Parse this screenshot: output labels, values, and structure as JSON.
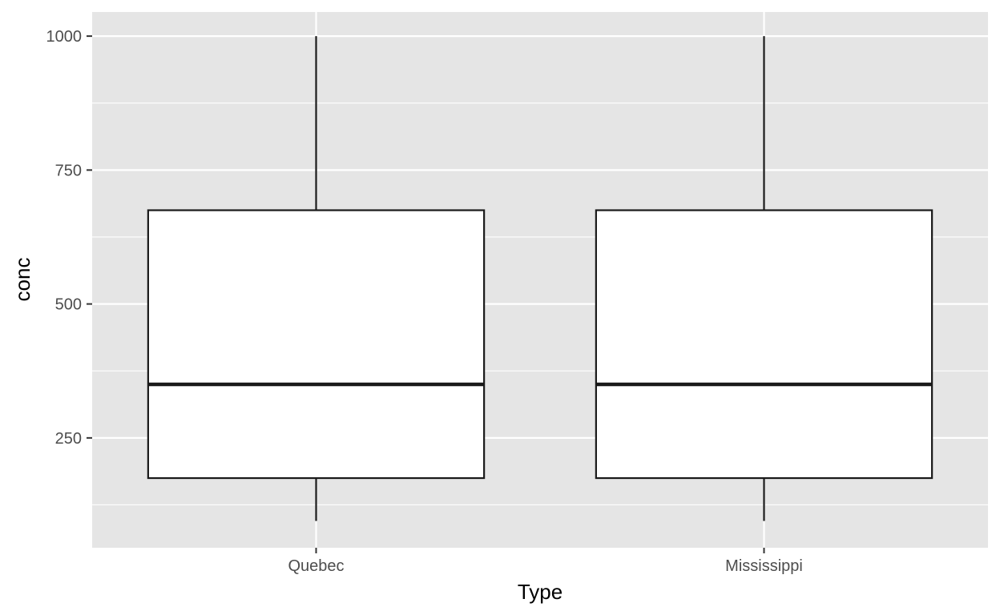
{
  "chart_data": {
    "type": "boxplot",
    "title": "",
    "xlabel": "Type",
    "ylabel": "conc",
    "categories": [
      "Quebec",
      "Mississippi"
    ],
    "boxes": [
      {
        "category": "Quebec",
        "min": 95,
        "q1": 175,
        "median": 350,
        "q3": 675,
        "max": 1000
      },
      {
        "category": "Mississippi",
        "min": 95,
        "q1": 175,
        "median": 350,
        "q3": 675,
        "max": 1000
      }
    ],
    "yticks": [
      250,
      500,
      750,
      1000
    ],
    "ylim": [
      45,
      1045
    ],
    "grid": true,
    "legend": "none",
    "colors": {
      "panel": "#e5e5e5",
      "grid": "#ffffff",
      "box_fill": "#ffffff",
      "box_stroke": "#1a1a1a"
    }
  }
}
